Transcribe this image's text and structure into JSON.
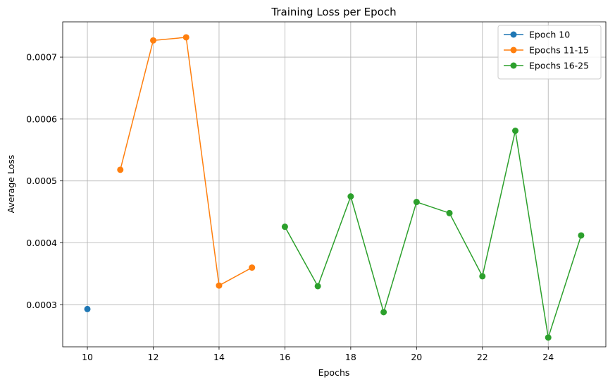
{
  "chart_data": {
    "type": "line",
    "title": "Training Loss per Epoch",
    "xlabel": "Epochs",
    "ylabel": "Average Loss",
    "xlim": [
      9.25,
      25.75
    ],
    "ylim": [
      0.000232,
      0.000757
    ],
    "xticks": [
      10,
      12,
      14,
      16,
      18,
      20,
      22,
      24
    ],
    "xtick_labels": [
      "10",
      "12",
      "14",
      "16",
      "18",
      "20",
      "22",
      "24"
    ],
    "yticks": [
      0.0003,
      0.0004,
      0.0005,
      0.0006,
      0.0007
    ],
    "ytick_labels": [
      "0.0003",
      "0.0004",
      "0.0005",
      "0.0006",
      "0.0007"
    ],
    "grid": true,
    "legend_position": "top-right",
    "series": [
      {
        "name": "Epoch 10",
        "color": "#1f77b4",
        "x": [
          10
        ],
        "y": [
          0.000293
        ]
      },
      {
        "name": "Epochs 11-15",
        "color": "#ff7f0e",
        "x": [
          11,
          12,
          13,
          14,
          15
        ],
        "y": [
          0.000518,
          0.000727,
          0.000732,
          0.000331,
          0.00036
        ]
      },
      {
        "name": "Epochs 16-25",
        "color": "#2ca02c",
        "x": [
          16,
          17,
          18,
          19,
          20,
          21,
          22,
          23,
          24,
          25
        ],
        "y": [
          0.000426,
          0.00033,
          0.000475,
          0.000288,
          0.000466,
          0.000448,
          0.000346,
          0.000581,
          0.000247,
          0.000412
        ]
      }
    ]
  }
}
